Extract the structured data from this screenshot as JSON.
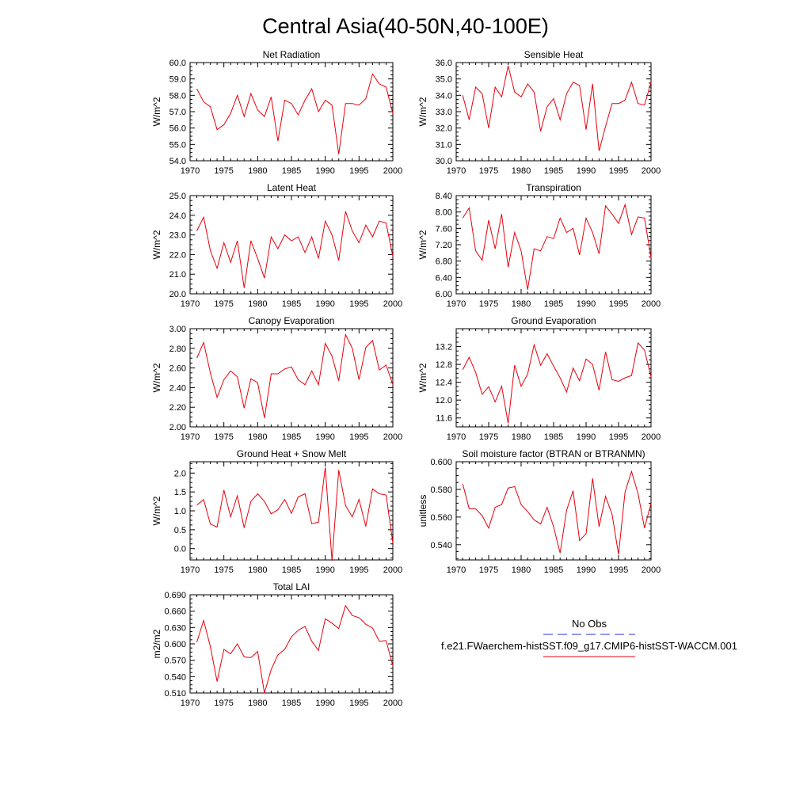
{
  "figure": {
    "title": "Central Asia(40-50N,40-100E)",
    "legend": {
      "entries": [
        {
          "name": "No Obs",
          "color": "#2b2bd9",
          "dash": true
        },
        {
          "name": "f.e21.FWaerchem-histSST.f09_g17.CMIP6-histSST-WACCM.001",
          "color": "#e8000b",
          "dash": false
        }
      ]
    }
  },
  "chart_data": [
    {
      "type": "line",
      "title": "Net Radiation",
      "ylabel": "W/m^2",
      "xlim": [
        1970,
        2000
      ],
      "ylim": [
        54.0,
        60.0
      ],
      "xticks": [
        1970,
        1975,
        1980,
        1985,
        1990,
        1995,
        2000
      ],
      "xtick_labels": [
        "1970",
        "1975",
        "1980",
        "1985",
        "1990",
        "1995",
        "2000"
      ],
      "yticks": [
        54,
        55,
        56,
        57,
        58,
        59,
        60
      ],
      "ytick_labels": [
        "54.0",
        "55.0",
        "56.0",
        "57.0",
        "58.0",
        "59.0",
        "60.0"
      ],
      "x": [
        1971,
        1972,
        1973,
        1974,
        1975,
        1976,
        1977,
        1978,
        1979,
        1980,
        1981,
        1982,
        1983,
        1984,
        1985,
        1986,
        1987,
        1988,
        1989,
        1990,
        1991,
        1992,
        1993,
        1994,
        1995,
        1996,
        1997,
        1998,
        1999,
        2000
      ],
      "series": [
        {
          "color": "#e8000b",
          "values": [
            58.4,
            57.6,
            57.3,
            55.9,
            56.2,
            56.9,
            58.0,
            56.7,
            58.1,
            57.1,
            56.7,
            57.9,
            55.2,
            57.7,
            57.5,
            56.8,
            57.7,
            58.4,
            57.0,
            57.7,
            57.4,
            54.4,
            57.5,
            57.5,
            57.4,
            57.8,
            59.3,
            58.7,
            58.5,
            56.9
          ]
        }
      ]
    },
    {
      "type": "line",
      "title": "Sensible Heat",
      "ylabel": "W/m^2",
      "xlim": [
        1970,
        2000
      ],
      "ylim": [
        30.0,
        36.0
      ],
      "xticks": [
        1970,
        1975,
        1980,
        1985,
        1990,
        1995,
        2000
      ],
      "xtick_labels": [
        "1970",
        "1975",
        "1980",
        "1985",
        "1990",
        "1995",
        "2000"
      ],
      "yticks": [
        30,
        31,
        32,
        33,
        34,
        35,
        36
      ],
      "ytick_labels": [
        "30.0",
        "31.0",
        "32.0",
        "33.0",
        "34.0",
        "35.0",
        "36.0"
      ],
      "x": [
        1971,
        1972,
        1973,
        1974,
        1975,
        1976,
        1977,
        1978,
        1979,
        1980,
        1981,
        1982,
        1983,
        1984,
        1985,
        1986,
        1987,
        1988,
        1989,
        1990,
        1991,
        1992,
        1993,
        1994,
        1995,
        1996,
        1997,
        1998,
        1999,
        2000
      ],
      "series": [
        {
          "color": "#e8000b",
          "values": [
            34.0,
            32.5,
            34.5,
            34.1,
            32.0,
            34.5,
            33.9,
            35.8,
            34.2,
            33.9,
            34.7,
            34.2,
            31.8,
            33.3,
            33.8,
            32.5,
            34.1,
            34.8,
            34.6,
            31.9,
            34.7,
            30.6,
            32.1,
            33.5,
            33.5,
            33.7,
            34.8,
            33.5,
            33.4,
            34.8
          ]
        }
      ]
    },
    {
      "type": "line",
      "title": "Latent Heat",
      "ylabel": "W/m^2",
      "xlim": [
        1970,
        2000
      ],
      "ylim": [
        20.0,
        25.0
      ],
      "xticks": [
        1970,
        1975,
        1980,
        1985,
        1990,
        1995,
        2000
      ],
      "xtick_labels": [
        "1970",
        "1975",
        "1980",
        "1985",
        "1990",
        "1995",
        "2000"
      ],
      "yticks": [
        20,
        21,
        22,
        23,
        24,
        25
      ],
      "ytick_labels": [
        "20.0",
        "21.0",
        "22.0",
        "23.0",
        "24.0",
        "25.0"
      ],
      "x": [
        1971,
        1972,
        1973,
        1974,
        1975,
        1976,
        1977,
        1978,
        1979,
        1980,
        1981,
        1982,
        1983,
        1984,
        1985,
        1986,
        1987,
        1988,
        1989,
        1990,
        1991,
        1992,
        1993,
        1994,
        1995,
        1996,
        1997,
        1998,
        1999,
        2000
      ],
      "series": [
        {
          "color": "#e8000b",
          "values": [
            23.2,
            23.9,
            22.2,
            21.3,
            22.6,
            21.6,
            22.7,
            20.3,
            22.7,
            21.8,
            20.8,
            22.9,
            22.3,
            23.0,
            22.7,
            22.9,
            22.1,
            22.9,
            21.8,
            23.7,
            23.0,
            21.7,
            24.2,
            23.2,
            22.6,
            23.5,
            22.9,
            23.7,
            23.6,
            21.9
          ]
        }
      ]
    },
    {
      "type": "line",
      "title": "Transpiration",
      "ylabel": "W/m^2",
      "xlim": [
        1970,
        2000
      ],
      "ylim": [
        6.0,
        8.4
      ],
      "xticks": [
        1970,
        1975,
        1980,
        1985,
        1990,
        1995,
        2000
      ],
      "xtick_labels": [
        "1970",
        "1975",
        "1980",
        "1985",
        "1990",
        "1995",
        "2000"
      ],
      "yticks": [
        6.0,
        6.4,
        6.8,
        7.2,
        7.6,
        8.0,
        8.4
      ],
      "ytick_labels": [
        "6.00",
        "6.40",
        "6.80",
        "7.20",
        "7.60",
        "8.00",
        "8.40"
      ],
      "x": [
        1971,
        1972,
        1973,
        1974,
        1975,
        1976,
        1977,
        1978,
        1979,
        1980,
        1981,
        1982,
        1983,
        1984,
        1985,
        1986,
        1987,
        1988,
        1989,
        1990,
        1991,
        1992,
        1993,
        1994,
        1995,
        1996,
        1997,
        1998,
        1999,
        2000
      ],
      "series": [
        {
          "color": "#e8000b",
          "values": [
            7.85,
            8.1,
            7.05,
            6.82,
            7.8,
            7.1,
            7.95,
            6.65,
            7.5,
            7.05,
            6.1,
            7.1,
            7.05,
            7.4,
            7.35,
            7.85,
            7.5,
            7.6,
            6.95,
            7.85,
            7.5,
            6.98,
            8.15,
            7.95,
            7.72,
            8.18,
            7.45,
            7.88,
            7.85,
            6.88
          ]
        }
      ]
    },
    {
      "type": "line",
      "title": "Canopy Evaporation",
      "ylabel": "W/m^2",
      "xlim": [
        1970,
        2000
      ],
      "ylim": [
        2.0,
        3.0
      ],
      "xticks": [
        1970,
        1975,
        1980,
        1985,
        1990,
        1995,
        2000
      ],
      "xtick_labels": [
        "1970",
        "1975",
        "1980",
        "1985",
        "1990",
        "1995",
        "2000"
      ],
      "yticks": [
        2.0,
        2.2,
        2.4,
        2.6,
        2.8,
        3.0
      ],
      "ytick_labels": [
        "2.00",
        "2.20",
        "2.40",
        "2.60",
        "2.80",
        "3.00"
      ],
      "x": [
        1971,
        1972,
        1973,
        1974,
        1975,
        1976,
        1977,
        1978,
        1979,
        1980,
        1981,
        1982,
        1983,
        1984,
        1985,
        1986,
        1987,
        1988,
        1989,
        1990,
        1991,
        1992,
        1993,
        1994,
        1995,
        1996,
        1997,
        1998,
        1999,
        2000
      ],
      "series": [
        {
          "color": "#e8000b",
          "values": [
            2.7,
            2.86,
            2.55,
            2.3,
            2.48,
            2.57,
            2.51,
            2.19,
            2.49,
            2.45,
            2.09,
            2.54,
            2.54,
            2.59,
            2.61,
            2.48,
            2.43,
            2.57,
            2.43,
            2.85,
            2.72,
            2.47,
            2.94,
            2.8,
            2.48,
            2.81,
            2.88,
            2.58,
            2.63,
            2.43
          ]
        }
      ]
    },
    {
      "type": "line",
      "title": "Ground Evaporation",
      "ylabel": "W/m^2",
      "xlim": [
        1970,
        2000
      ],
      "ylim": [
        11.4,
        13.6
      ],
      "xticks": [
        1970,
        1975,
        1980,
        1985,
        1990,
        1995,
        2000
      ],
      "xtick_labels": [
        "1970",
        "1975",
        "1980",
        "1985",
        "1990",
        "1995",
        "2000"
      ],
      "yticks": [
        11.6,
        12.0,
        12.4,
        12.8,
        13.2
      ],
      "ytick_labels": [
        "11.6",
        "12.0",
        "12.4",
        "12.8",
        "13.2"
      ],
      "x": [
        1971,
        1972,
        1973,
        1974,
        1975,
        1976,
        1977,
        1978,
        1979,
        1980,
        1981,
        1982,
        1983,
        1984,
        1985,
        1986,
        1987,
        1988,
        1989,
        1990,
        1991,
        1992,
        1993,
        1994,
        1995,
        1996,
        1997,
        1998,
        1999,
        2000
      ],
      "series": [
        {
          "color": "#e8000b",
          "values": [
            12.68,
            12.96,
            12.62,
            12.13,
            12.3,
            11.96,
            12.31,
            11.48,
            12.78,
            12.31,
            12.58,
            13.24,
            12.78,
            13.04,
            12.76,
            12.5,
            12.18,
            12.72,
            12.43,
            12.92,
            12.8,
            12.22,
            13.08,
            12.46,
            12.42,
            12.5,
            12.55,
            13.28,
            13.12,
            12.52
          ]
        }
      ]
    },
    {
      "type": "line",
      "title": "Ground Heat + Snow Melt",
      "ylabel": "W/m^2",
      "xlim": [
        1970,
        2000
      ],
      "ylim": [
        -0.3,
        2.3
      ],
      "xticks": [
        1970,
        1975,
        1980,
        1985,
        1990,
        1995,
        2000
      ],
      "xtick_labels": [
        "1970",
        "1975",
        "1980",
        "1985",
        "1990",
        "1995",
        "2000"
      ],
      "yticks": [
        0.0,
        0.5,
        1.0,
        1.5,
        2.0
      ],
      "ytick_labels": [
        "0.0",
        "0.5",
        "1.0",
        "1.5",
        "2.0"
      ],
      "x": [
        1971,
        1972,
        1973,
        1974,
        1975,
        1976,
        1977,
        1978,
        1979,
        1980,
        1981,
        1982,
        1983,
        1984,
        1985,
        1986,
        1987,
        1988,
        1989,
        1990,
        1991,
        1992,
        1993,
        1994,
        1995,
        1996,
        1997,
        1998,
        1999,
        2000
      ],
      "series": [
        {
          "color": "#e8000b",
          "values": [
            1.15,
            1.3,
            0.65,
            0.57,
            1.55,
            0.84,
            1.4,
            0.55,
            1.25,
            1.45,
            1.25,
            0.92,
            1.03,
            1.3,
            0.93,
            1.37,
            1.45,
            0.66,
            0.7,
            2.15,
            -0.32,
            2.08,
            1.14,
            0.84,
            1.3,
            0.59,
            1.58,
            1.45,
            1.42,
            0.15
          ]
        }
      ]
    },
    {
      "type": "line",
      "title": "Soil moisture factor (BTRAN or BTRANMN)",
      "ylabel": "unitless",
      "xlim": [
        1970,
        2000
      ],
      "ylim": [
        0.529,
        0.6
      ],
      "xticks": [
        1970,
        1975,
        1980,
        1985,
        1990,
        1995,
        2000
      ],
      "xtick_labels": [
        "1970",
        "1975",
        "1980",
        "1985",
        "1990",
        "1995",
        "2000"
      ],
      "yticks": [
        0.54,
        0.56,
        0.58,
        0.6
      ],
      "ytick_labels": [
        "0.540",
        "0.560",
        "0.580",
        "0.600"
      ],
      "x": [
        1971,
        1972,
        1973,
        1974,
        1975,
        1976,
        1977,
        1978,
        1979,
        1980,
        1981,
        1982,
        1983,
        1984,
        1985,
        1986,
        1987,
        1988,
        1989,
        1990,
        1991,
        1992,
        1993,
        1994,
        1995,
        1996,
        1997,
        1998,
        1999,
        2000
      ],
      "series": [
        {
          "color": "#e8000b",
          "values": [
            0.584,
            0.566,
            0.566,
            0.561,
            0.552,
            0.567,
            0.569,
            0.581,
            0.582,
            0.569,
            0.564,
            0.558,
            0.555,
            0.567,
            0.553,
            0.534,
            0.565,
            0.579,
            0.543,
            0.548,
            0.588,
            0.553,
            0.575,
            0.562,
            0.533,
            0.578,
            0.593,
            0.577,
            0.552,
            0.57
          ]
        }
      ]
    },
    {
      "type": "line",
      "title": "Total LAI",
      "ylabel": "m2/m2",
      "xlim": [
        1970,
        2000
      ],
      "ylim": [
        0.51,
        0.69
      ],
      "xticks": [
        1970,
        1975,
        1980,
        1985,
        1990,
        1995,
        2000
      ],
      "xtick_labels": [
        "1970",
        "1975",
        "1980",
        "1985",
        "1990",
        "1995",
        "2000"
      ],
      "yticks": [
        0.51,
        0.54,
        0.57,
        0.6,
        0.63,
        0.66,
        0.69
      ],
      "ytick_labels": [
        "0.510",
        "0.540",
        "0.570",
        "0.600",
        "0.630",
        "0.660",
        "0.690"
      ],
      "x": [
        1971,
        1972,
        1973,
        1974,
        1975,
        1976,
        1977,
        1978,
        1979,
        1980,
        1981,
        1982,
        1983,
        1984,
        1985,
        1986,
        1987,
        1988,
        1989,
        1990,
        1991,
        1992,
        1993,
        1994,
        1995,
        1996,
        1997,
        1998,
        1999,
        2000
      ],
      "series": [
        {
          "color": "#e8000b",
          "values": [
            0.603,
            0.643,
            0.595,
            0.531,
            0.59,
            0.582,
            0.6,
            0.576,
            0.575,
            0.586,
            0.51,
            0.553,
            0.58,
            0.59,
            0.613,
            0.625,
            0.632,
            0.605,
            0.588,
            0.646,
            0.638,
            0.628,
            0.67,
            0.652,
            0.648,
            0.636,
            0.629,
            0.605,
            0.606,
            0.56
          ]
        }
      ]
    }
  ]
}
